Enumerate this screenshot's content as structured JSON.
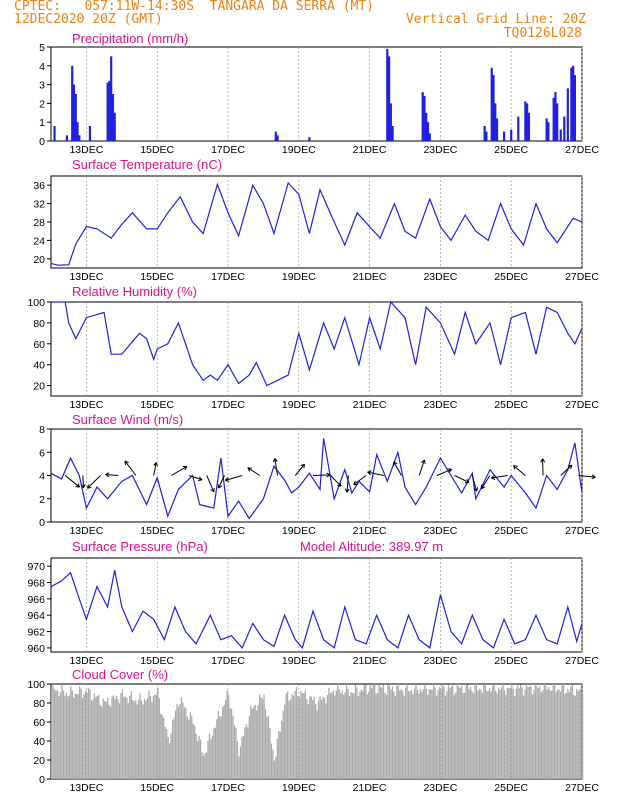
{
  "header": {
    "line1": "CPTEC:   057:11W-14:30S  TANGARA DA SERRA (MT)",
    "line2": "12DEC2020 20Z (GMT)",
    "grid_note": "Vertical Grid Line: 20Z",
    "code": "TQ0126L028",
    "model_altitude": "Model Altitude: 389.97 m"
  },
  "colors": {
    "header": "#f08010",
    "title": "#e0108a",
    "line": "#2020e0",
    "cloud": "#aaaaaa",
    "arrow": "#000000"
  },
  "x_axis": {
    "ticks": [
      {
        "t": 1,
        "label": "13DEC"
      },
      {
        "t": 3,
        "label": "15DEC"
      },
      {
        "t": 5,
        "label": "17DEC"
      },
      {
        "t": 7,
        "label": "19DEC"
      },
      {
        "t": 9,
        "label": "21DEC"
      },
      {
        "t": 11,
        "label": "23DEC"
      },
      {
        "t": 13,
        "label": "25DEC"
      },
      {
        "t": 15,
        "label": "27DEC"
      }
    ],
    "range_days": [
      0,
      15
    ]
  },
  "chart_data": [
    {
      "type": "bar",
      "title": "Precipitation (mm/h)",
      "ylim": [
        0,
        5
      ],
      "yticks": [
        0,
        1,
        2,
        3,
        4,
        5
      ],
      "values": [
        [
          0.1,
          0.8
        ],
        [
          0.45,
          0.3
        ],
        [
          0.6,
          4.0
        ],
        [
          0.65,
          3.0
        ],
        [
          0.7,
          2.5
        ],
        [
          0.75,
          1.0
        ],
        [
          0.8,
          0.3
        ],
        [
          1.1,
          0.8
        ],
        [
          1.6,
          3.1
        ],
        [
          1.65,
          3.2
        ],
        [
          1.7,
          4.5
        ],
        [
          1.75,
          2.5
        ],
        [
          1.8,
          1.5
        ],
        [
          6.35,
          0.5
        ],
        [
          6.4,
          0.3
        ],
        [
          7.3,
          0.2
        ],
        [
          9.5,
          4.9
        ],
        [
          9.55,
          4.5
        ],
        [
          9.6,
          2.0
        ],
        [
          9.65,
          0.8
        ],
        [
          10.5,
          2.6
        ],
        [
          10.55,
          2.4
        ],
        [
          10.6,
          1.5
        ],
        [
          10.65,
          1.0
        ],
        [
          10.7,
          0.4
        ],
        [
          12.25,
          0.8
        ],
        [
          12.3,
          0.5
        ],
        [
          12.45,
          3.9
        ],
        [
          12.5,
          3.5
        ],
        [
          12.55,
          2.0
        ],
        [
          12.6,
          1.2
        ],
        [
          12.8,
          0.5
        ],
        [
          13.0,
          0.6
        ],
        [
          13.2,
          1.3
        ],
        [
          13.4,
          2.1
        ],
        [
          13.45,
          2.0
        ],
        [
          13.5,
          1.5
        ],
        [
          14.0,
          1.2
        ],
        [
          14.05,
          1.0
        ],
        [
          14.2,
          2.3
        ],
        [
          14.25,
          2.6
        ],
        [
          14.3,
          2.0
        ],
        [
          14.4,
          0.6
        ],
        [
          14.5,
          1.3
        ],
        [
          14.6,
          2.8
        ],
        [
          14.7,
          3.9
        ],
        [
          14.75,
          4.0
        ],
        [
          14.8,
          3.5
        ]
      ]
    },
    {
      "type": "line",
      "title": "Surface Temperature (nC)",
      "ylim": [
        18,
        38
      ],
      "yticks": [
        20,
        24,
        28,
        32,
        36
      ],
      "points": [
        [
          0,
          19
        ],
        [
          0.2,
          18.6
        ],
        [
          0.5,
          18.7
        ],
        [
          0.7,
          23.2
        ],
        [
          1.0,
          27
        ],
        [
          1.3,
          26.5
        ],
        [
          1.7,
          24.5
        ],
        [
          2.0,
          27.5
        ],
        [
          2.3,
          30
        ],
        [
          2.7,
          26.5
        ],
        [
          3.0,
          26.5
        ],
        [
          3.3,
          30
        ],
        [
          3.65,
          33.5
        ],
        [
          4.0,
          28
        ],
        [
          4.3,
          25.5
        ],
        [
          4.7,
          36.2
        ],
        [
          5.0,
          30
        ],
        [
          5.3,
          25
        ],
        [
          5.7,
          36
        ],
        [
          6.0,
          32
        ],
        [
          6.3,
          25.5
        ],
        [
          6.7,
          36.5
        ],
        [
          7.0,
          34
        ],
        [
          7.3,
          25.5
        ],
        [
          7.6,
          35
        ],
        [
          8.0,
          28
        ],
        [
          8.3,
          23
        ],
        [
          8.65,
          30
        ],
        [
          9.0,
          27
        ],
        [
          9.3,
          24.5
        ],
        [
          9.7,
          32
        ],
        [
          10.0,
          26
        ],
        [
          10.3,
          24.5
        ],
        [
          10.7,
          33
        ],
        [
          11.0,
          27
        ],
        [
          11.3,
          24
        ],
        [
          11.7,
          29.5
        ],
        [
          12.0,
          26
        ],
        [
          12.35,
          24
        ],
        [
          12.7,
          32
        ],
        [
          13.0,
          26.5
        ],
        [
          13.35,
          23
        ],
        [
          13.7,
          32
        ],
        [
          14.0,
          26.5
        ],
        [
          14.3,
          23.5
        ],
        [
          14.75,
          28.8
        ],
        [
          15.0,
          28.0
        ]
      ]
    },
    {
      "type": "line",
      "title": "Relative Humidity (%)",
      "ylim": [
        10,
        100
      ],
      "yticks": [
        20,
        40,
        60,
        80,
        100
      ],
      "points": [
        [
          0,
          100
        ],
        [
          0.4,
          100
        ],
        [
          0.5,
          80
        ],
        [
          0.7,
          65
        ],
        [
          1.0,
          85
        ],
        [
          1.5,
          90
        ],
        [
          1.7,
          50
        ],
        [
          2.0,
          50
        ],
        [
          2.5,
          70
        ],
        [
          2.7,
          65
        ],
        [
          2.9,
          45
        ],
        [
          3.0,
          55
        ],
        [
          3.3,
          60
        ],
        [
          3.6,
          80
        ],
        [
          4.0,
          40
        ],
        [
          4.3,
          25
        ],
        [
          4.5,
          30
        ],
        [
          4.7,
          25
        ],
        [
          5.0,
          40
        ],
        [
          5.3,
          22
        ],
        [
          5.6,
          30
        ],
        [
          5.8,
          42
        ],
        [
          6.1,
          20
        ],
        [
          6.4,
          25
        ],
        [
          6.7,
          30
        ],
        [
          7.0,
          70
        ],
        [
          7.3,
          35
        ],
        [
          7.7,
          80
        ],
        [
          8.0,
          55
        ],
        [
          8.3,
          85
        ],
        [
          8.7,
          40
        ],
        [
          9.0,
          85
        ],
        [
          9.3,
          55
        ],
        [
          9.6,
          100
        ],
        [
          10.0,
          85
        ],
        [
          10.3,
          40
        ],
        [
          10.6,
          95
        ],
        [
          11.0,
          80
        ],
        [
          11.4,
          50
        ],
        [
          11.7,
          90
        ],
        [
          12.0,
          60
        ],
        [
          12.4,
          80
        ],
        [
          12.7,
          40
        ],
        [
          13.0,
          85
        ],
        [
          13.4,
          90
        ],
        [
          13.7,
          50
        ],
        [
          14.0,
          95
        ],
        [
          14.3,
          90
        ],
        [
          14.6,
          70
        ],
        [
          14.8,
          60
        ],
        [
          15.0,
          75
        ]
      ]
    },
    {
      "type": "line",
      "title": "Surface Wind (m/s)",
      "ylim": [
        0,
        8
      ],
      "yticks": [
        0,
        2,
        4,
        6,
        8
      ],
      "points": [
        [
          0,
          4.2
        ],
        [
          0.3,
          3.7
        ],
        [
          0.55,
          5.5
        ],
        [
          0.8,
          4.0
        ],
        [
          1.0,
          1.2
        ],
        [
          1.3,
          3.0
        ],
        [
          1.6,
          2.0
        ],
        [
          2.0,
          3.5
        ],
        [
          2.3,
          4.0
        ],
        [
          2.7,
          1.5
        ],
        [
          3.0,
          3.8
        ],
        [
          3.3,
          0.5
        ],
        [
          3.6,
          2.8
        ],
        [
          4.0,
          4.0
        ],
        [
          4.2,
          1.5
        ],
        [
          4.6,
          1.2
        ],
        [
          4.8,
          5.5
        ],
        [
          5.0,
          0.5
        ],
        [
          5.3,
          1.8
        ],
        [
          5.6,
          0.3
        ],
        [
          6.0,
          2.0
        ],
        [
          6.3,
          4.8
        ],
        [
          6.6,
          3.6
        ],
        [
          6.8,
          2.5
        ],
        [
          7.0,
          3.0
        ],
        [
          7.3,
          4.2
        ],
        [
          7.6,
          2.8
        ],
        [
          7.7,
          7.2
        ],
        [
          8.0,
          2.0
        ],
        [
          8.3,
          4.5
        ],
        [
          8.5,
          2.5
        ],
        [
          8.7,
          3.5
        ],
        [
          9.0,
          2.6
        ],
        [
          9.2,
          5.8
        ],
        [
          9.5,
          3.5
        ],
        [
          9.8,
          6.0
        ],
        [
          10.0,
          3.0
        ],
        [
          10.3,
          1.5
        ],
        [
          10.6,
          3.0
        ],
        [
          11.0,
          5.5
        ],
        [
          11.3,
          4.0
        ],
        [
          11.6,
          2.5
        ],
        [
          11.9,
          4.2
        ],
        [
          12.0,
          2.0
        ],
        [
          12.4,
          4.5
        ],
        [
          12.8,
          3.0
        ],
        [
          13.0,
          4.0
        ],
        [
          13.4,
          2.5
        ],
        [
          13.7,
          1.2
        ],
        [
          14.0,
          4.0
        ],
        [
          14.3,
          2.8
        ],
        [
          14.6,
          4.5
        ],
        [
          14.8,
          6.8
        ],
        [
          15.0,
          2.5
        ]
      ]
    },
    {
      "type": "line",
      "title": "Surface Pressure (hPa)",
      "ylim": [
        959.5,
        971
      ],
      "yticks": [
        960,
        962,
        964,
        966,
        968,
        970
      ],
      "points": [
        [
          0,
          967.5
        ],
        [
          0.3,
          968.2
        ],
        [
          0.55,
          969.2
        ],
        [
          0.8,
          966
        ],
        [
          1.0,
          963.5
        ],
        [
          1.3,
          967.5
        ],
        [
          1.6,
          965
        ],
        [
          1.8,
          969.5
        ],
        [
          2.0,
          965
        ],
        [
          2.3,
          962
        ],
        [
          2.6,
          964.5
        ],
        [
          2.9,
          963.5
        ],
        [
          3.2,
          961
        ],
        [
          3.5,
          965
        ],
        [
          3.8,
          962
        ],
        [
          4.1,
          960.5
        ],
        [
          4.5,
          964
        ],
        [
          4.8,
          961
        ],
        [
          5.1,
          961.5
        ],
        [
          5.4,
          960
        ],
        [
          5.7,
          963
        ],
        [
          6.0,
          961
        ],
        [
          6.3,
          960.2
        ],
        [
          6.6,
          964
        ],
        [
          6.9,
          961
        ],
        [
          7.1,
          960
        ],
        [
          7.4,
          964.5
        ],
        [
          7.7,
          961
        ],
        [
          8.0,
          960
        ],
        [
          8.3,
          965
        ],
        [
          8.6,
          961
        ],
        [
          8.9,
          960.5
        ],
        [
          9.2,
          964
        ],
        [
          9.5,
          961
        ],
        [
          9.8,
          960
        ],
        [
          10.1,
          964
        ],
        [
          10.4,
          961
        ],
        [
          10.7,
          960
        ],
        [
          11.0,
          966.5
        ],
        [
          11.3,
          962
        ],
        [
          11.6,
          960.5
        ],
        [
          11.9,
          964
        ],
        [
          12.2,
          961
        ],
        [
          12.5,
          960
        ],
        [
          12.8,
          963.5
        ],
        [
          13.1,
          960.5
        ],
        [
          13.4,
          961
        ],
        [
          13.7,
          964
        ],
        [
          14.0,
          961
        ],
        [
          14.3,
          960.5
        ],
        [
          14.6,
          965
        ],
        [
          14.85,
          960.8
        ],
        [
          15.0,
          963
        ]
      ]
    },
    {
      "type": "bar",
      "title": "Cloud Cover (%)",
      "ylim": [
        0,
        100
      ],
      "yticks": [
        0,
        20,
        40,
        60,
        80,
        100
      ],
      "anchors": [
        [
          0,
          95
        ],
        [
          0.5,
          90
        ],
        [
          1.0,
          92
        ],
        [
          1.5,
          80
        ],
        [
          2.0,
          88
        ],
        [
          2.5,
          82
        ],
        [
          3.0,
          90
        ],
        [
          3.3,
          40
        ],
        [
          3.6,
          85
        ],
        [
          4.0,
          60
        ],
        [
          4.3,
          25
        ],
        [
          4.6,
          55
        ],
        [
          5.0,
          90
        ],
        [
          5.3,
          30
        ],
        [
          5.6,
          70
        ],
        [
          6.0,
          88
        ],
        [
          6.3,
          20
        ],
        [
          6.6,
          85
        ],
        [
          7.0,
          92
        ],
        [
          7.5,
          80
        ],
        [
          8.0,
          94
        ],
        [
          8.5,
          92
        ],
        [
          9.0,
          96
        ],
        [
          10.0,
          94
        ],
        [
          11.0,
          95
        ],
        [
          12.0,
          96
        ],
        [
          13.0,
          95
        ],
        [
          14.0,
          97
        ],
        [
          15.0,
          92
        ]
      ]
    }
  ]
}
